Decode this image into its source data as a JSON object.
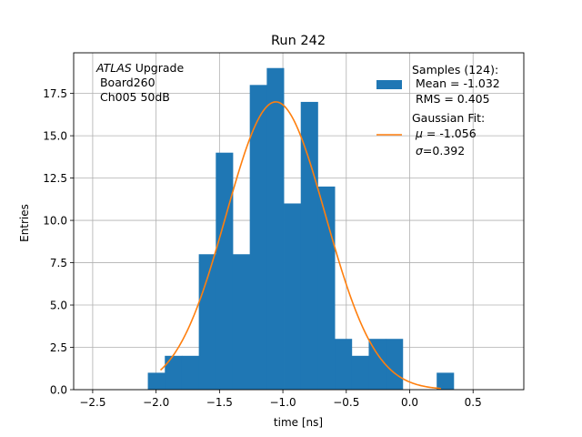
{
  "chart_data": {
    "type": "bar",
    "title": "Run 242",
    "xlabel": "time [ns]",
    "ylabel": "Entries",
    "xlim": [
      -2.65,
      0.9
    ],
    "ylim": [
      0,
      19.9
    ],
    "grid": true,
    "x_ticks": [
      -2.5,
      -2.0,
      -1.5,
      -1.0,
      -0.5,
      0.0,
      0.5
    ],
    "x_tick_labels": [
      "−2.5",
      "−2.0",
      "−1.5",
      "−1.0",
      "−0.5",
      "0.0",
      "0.5"
    ],
    "y_ticks": [
      0.0,
      2.5,
      5.0,
      7.5,
      10.0,
      12.5,
      15.0,
      17.5
    ],
    "y_tick_labels": [
      "0.0",
      "2.5",
      "5.0",
      "7.5",
      "10.0",
      "12.5",
      "15.0",
      "17.5"
    ],
    "histogram": {
      "name": "Samples (124):",
      "color": "#1f77b4",
      "bin_edges": [
        -2.065,
        -1.931,
        -1.797,
        -1.663,
        -1.529,
        -1.395,
        -1.261,
        -1.127,
        -0.993,
        -0.859,
        -0.725,
        -0.591,
        -0.457,
        -0.323,
        -0.189,
        -0.055,
        0.079,
        0.213,
        0.347
      ],
      "counts": [
        1,
        2,
        2,
        8,
        14,
        8,
        18,
        19,
        11,
        17,
        12,
        3,
        2,
        3,
        3,
        0,
        0,
        1
      ]
    },
    "fit": {
      "name": "Gaussian Fit:",
      "color": "#ff7f0e",
      "mu": -1.056,
      "sigma": 0.392,
      "amplitude": 17.0,
      "x_range": [
        -1.965,
        0.247
      ]
    },
    "legend": {
      "position": "top-right",
      "samples_label": "Samples (124):",
      "samples_mean": " Mean = -1.032",
      "samples_rms": " RMS = 0.405",
      "fit_label": "Gaussian Fit:",
      "fit_mu_symbol": "μ",
      "fit_mu_value": " = -1.056",
      "fit_sigma_symbol": "σ",
      "fit_sigma_value": "=0.392"
    },
    "annotation": {
      "position": "top-left",
      "experiment": "ATLAS",
      "experiment_suffix": " Upgrade",
      "line2": " Board260",
      "line3": " Ch005 50dB"
    }
  }
}
